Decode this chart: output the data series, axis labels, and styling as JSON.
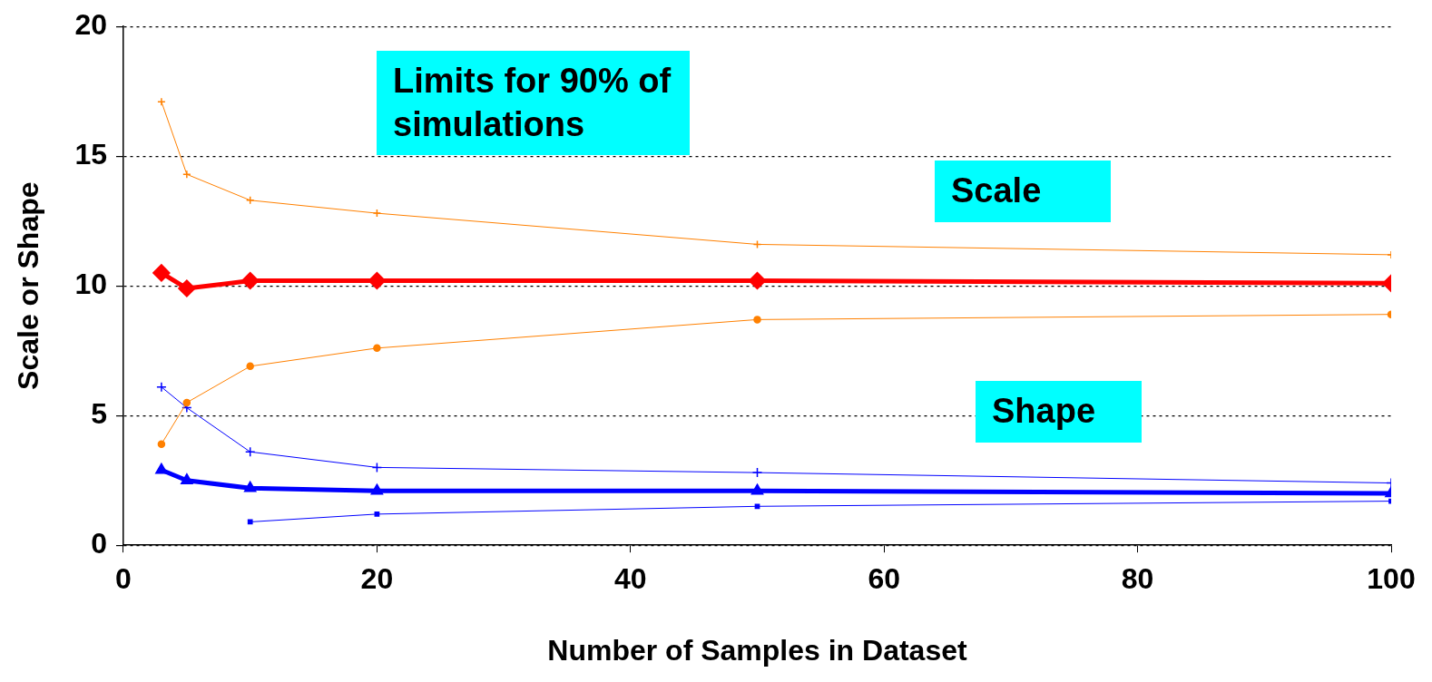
{
  "chart_data": {
    "type": "line",
    "xlabel": "Number of Samples in Dataset",
    "ylabel": "Scale or Shape",
    "x": [
      3,
      5,
      10,
      20,
      50,
      100
    ],
    "series": [
      {
        "color": "#ff8000",
        "marker": "cross",
        "values": [
          17.1,
          14.3,
          13.3,
          12.8,
          11.6,
          11.2
        ]
      },
      {
        "color": "#ff0000",
        "marker": "diamond",
        "values": [
          10.5,
          9.9,
          10.2,
          10.2,
          10.2,
          10.1
        ]
      },
      {
        "color": "#ff8000",
        "marker": "circle",
        "values": [
          3.9,
          5.5,
          6.9,
          7.6,
          8.7,
          8.9
        ]
      },
      {
        "color": "#0000ff",
        "marker": "cross",
        "values": [
          6.1,
          5.3,
          3.6,
          3.0,
          2.8,
          2.4
        ]
      },
      {
        "color": "#0000ff",
        "marker": "triangle",
        "values": [
          2.9,
          2.5,
          2.2,
          2.1,
          2.1,
          2.0
        ]
      },
      {
        "color": "#0000ff",
        "marker": "square",
        "values": [
          null,
          null,
          0.9,
          1.2,
          1.5,
          1.7
        ]
      }
    ],
    "xlim": [
      0,
      100
    ],
    "xticks": [
      0,
      20,
      40,
      60,
      80,
      100
    ],
    "ylim": [
      0,
      20
    ],
    "yticks": [
      0,
      5,
      10,
      15,
      20
    ],
    "grid": "y",
    "legend": false,
    "annotations": [
      "Limits for 90% of simulations",
      "Scale",
      "Shape"
    ]
  }
}
